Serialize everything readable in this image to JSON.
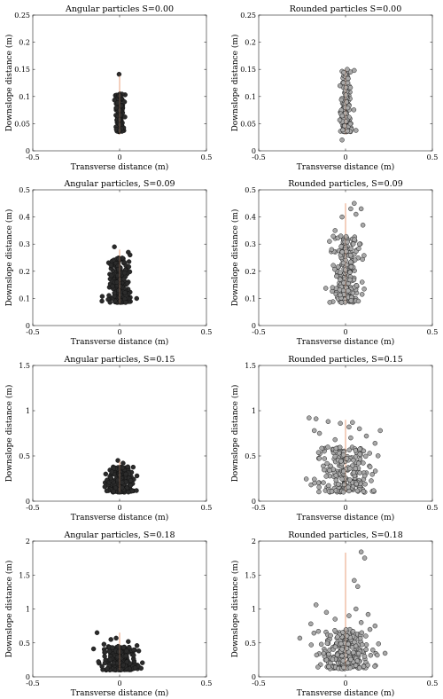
{
  "figure": {
    "xlabel": "Transverse distance (m)",
    "ylabel": "Downslope distance (m)",
    "colors": {
      "angular": "#2b2b2b",
      "rounded": "#a9a9a9",
      "edge": "#111111",
      "trajectory": "#e8a27e"
    }
  },
  "chart_data": [
    {
      "type": "scatter",
      "title": "Angular particles S=0.00",
      "series": "angular",
      "xlim": [
        -0.5,
        0.5
      ],
      "ylim": [
        0,
        0.25
      ],
      "xticks": [
        -0.5,
        0,
        0.5
      ],
      "xtick_labels": [
        "-0.5",
        "0",
        "0.5"
      ],
      "yticks": [
        0,
        0.05,
        0.1,
        0.15,
        0.2,
        0.25
      ],
      "ytick_labels": [
        "0",
        "0.05",
        "0.1",
        "0.15",
        "0.2",
        "0.25"
      ],
      "line": {
        "x": [
          0,
          0
        ],
        "y": [
          0.03,
          0.14
        ]
      },
      "cluster": {
        "n": 160,
        "x_center": 0,
        "x_spread": 0.012,
        "y_min": 0.035,
        "y_max": 0.105
      },
      "outliers": [
        [
          -0.003,
          0.141
        ]
      ]
    },
    {
      "type": "scatter",
      "title": "Rounded particles S=0.00",
      "series": "rounded",
      "xlim": [
        -0.5,
        0.5
      ],
      "ylim": [
        0,
        0.25
      ],
      "xticks": [
        -0.5,
        0,
        0.5
      ],
      "xtick_labels": [
        "-0.5",
        "0",
        "0.5"
      ],
      "yticks": [
        0,
        0.05,
        0.1,
        0.15,
        0.2,
        0.25
      ],
      "ytick_labels": [
        "0",
        "0.05",
        "0.1",
        "0.15",
        "0.2",
        "0.25"
      ],
      "line": {
        "x": [
          0,
          0
        ],
        "y": [
          0.03,
          0.15
        ]
      },
      "cluster": {
        "n": 150,
        "x_center": 0.003,
        "x_spread": 0.015,
        "y_min": 0.035,
        "y_max": 0.15
      },
      "outliers": [
        [
          -0.02,
          0.02
        ],
        [
          0.05,
          0.148
        ],
        [
          0.01,
          0.15
        ]
      ]
    },
    {
      "type": "scatter",
      "title": "Angular particles, S=0.09",
      "series": "angular",
      "xlim": [
        -0.5,
        0.5
      ],
      "ylim": [
        0,
        0.5
      ],
      "xticks": [
        -0.5,
        0,
        0.5
      ],
      "xtick_labels": [
        "-0.5",
        "0",
        "0.5"
      ],
      "yticks": [
        0,
        0.1,
        0.2,
        0.3,
        0.4,
        0.5
      ],
      "ytick_labels": [
        "0",
        "0.1",
        "0.2",
        "0.3",
        "0.4",
        "0.5"
      ],
      "line": {
        "x": [
          0,
          0
        ],
        "y": [
          0.08,
          0.28
        ]
      },
      "cluster": {
        "n": 200,
        "x_center": 0,
        "x_spread": 0.03,
        "y_min": 0.085,
        "y_max": 0.25
      },
      "outliers": [
        [
          -0.03,
          0.29
        ],
        [
          0.05,
          0.27
        ],
        [
          0.06,
          0.26
        ]
      ]
    },
    {
      "type": "scatter",
      "title": "Rounded particles, S=0.09",
      "series": "rounded",
      "xlim": [
        -0.5,
        0.5
      ],
      "ylim": [
        0,
        0.5
      ],
      "xticks": [
        -0.5,
        0,
        0.5
      ],
      "xtick_labels": [
        "-0.5",
        "0",
        "0.5"
      ],
      "yticks": [
        0,
        0.1,
        0.2,
        0.3,
        0.4,
        0.5
      ],
      "ytick_labels": [
        "0",
        "0.1",
        "0.2",
        "0.3",
        "0.4",
        "0.5"
      ],
      "line": {
        "x": [
          0,
          0
        ],
        "y": [
          0.08,
          0.45
        ]
      },
      "cluster": {
        "n": 220,
        "x_center": 0,
        "x_spread": 0.04,
        "y_min": 0.085,
        "y_max": 0.33
      },
      "outliers": [
        [
          0.05,
          0.45
        ],
        [
          0.03,
          0.43
        ],
        [
          0.09,
          0.43
        ],
        [
          0.06,
          0.41
        ],
        [
          -0.02,
          0.4
        ],
        [
          0.1,
          0.37
        ],
        [
          -0.06,
          0.35
        ],
        [
          0.08,
          0.3
        ],
        [
          -0.08,
          0.28
        ]
      ]
    },
    {
      "type": "scatter",
      "title": "Angular particles, S=0.15",
      "series": "angular",
      "xlim": [
        -0.5,
        0.5
      ],
      "ylim": [
        0,
        1.5
      ],
      "xticks": [
        -0.5,
        0,
        0.5
      ],
      "xtick_labels": [
        "-0.5",
        "0",
        "0.5"
      ],
      "yticks": [
        0,
        0.5,
        1,
        1.5
      ],
      "ytick_labels": [
        "0",
        "0.5",
        "1",
        "1.5"
      ],
      "line": {
        "x": [
          0,
          0
        ],
        "y": [
          0.1,
          0.45
        ]
      },
      "cluster": {
        "n": 200,
        "x_center": 0,
        "x_spread": 0.04,
        "y_min": 0.1,
        "y_max": 0.38
      },
      "outliers": [
        [
          -0.01,
          0.45
        ],
        [
          0.02,
          0.42
        ],
        [
          -0.08,
          0.3
        ],
        [
          0.1,
          0.28
        ]
      ]
    },
    {
      "type": "scatter",
      "title": "Rounded particles, S=0.15",
      "series": "rounded",
      "xlim": [
        -0.5,
        0.5
      ],
      "ylim": [
        0,
        1.5
      ],
      "xticks": [
        -0.5,
        0,
        0.5
      ],
      "xtick_labels": [
        "-0.5",
        "0",
        "0.5"
      ],
      "yticks": [
        0,
        0.5,
        1,
        1.5
      ],
      "ytick_labels": [
        "0",
        "0.5",
        "1",
        "1.5"
      ],
      "line": {
        "x": [
          0,
          0
        ],
        "y": [
          0.1,
          0.9
        ]
      },
      "cluster": {
        "n": 230,
        "x_center": 0,
        "x_spread": 0.08,
        "y_min": 0.1,
        "y_max": 0.6
      },
      "outliers": [
        [
          -0.21,
          0.92
        ],
        [
          -0.17,
          0.91
        ],
        [
          -0.1,
          0.88
        ],
        [
          -0.03,
          0.86
        ],
        [
          0.04,
          0.87
        ],
        [
          0.02,
          0.82
        ],
        [
          0.08,
          0.8
        ],
        [
          0.2,
          0.78
        ],
        [
          -0.18,
          0.78
        ],
        [
          -0.15,
          0.75
        ],
        [
          0.12,
          0.72
        ],
        [
          0.03,
          0.7
        ],
        [
          -0.06,
          0.68
        ],
        [
          0.17,
          0.64
        ]
      ]
    },
    {
      "type": "scatter",
      "title": "Angular particles, S=0.18",
      "series": "angular",
      "xlim": [
        -0.5,
        0.5
      ],
      "ylim": [
        0,
        2
      ],
      "xticks": [
        -0.5,
        0,
        0.5
      ],
      "xtick_labels": [
        "-0.5",
        "0",
        "0.5"
      ],
      "yticks": [
        0,
        0.5,
        1,
        1.5,
        2
      ],
      "ytick_labels": [
        "0",
        "0.5",
        "1",
        "1.5",
        "2"
      ],
      "line": {
        "x": [
          0,
          0
        ],
        "y": [
          0.1,
          0.65
        ]
      },
      "cluster": {
        "n": 210,
        "x_center": 0,
        "x_spread": 0.05,
        "y_min": 0.1,
        "y_max": 0.45
      },
      "outliers": [
        [
          -0.13,
          0.65
        ],
        [
          -0.05,
          0.55
        ],
        [
          -0.02,
          0.57
        ],
        [
          0.05,
          0.52
        ],
        [
          -0.09,
          0.48
        ],
        [
          0.1,
          0.46
        ]
      ]
    },
    {
      "type": "scatter",
      "title": "Rounded particles, S=0.18",
      "series": "rounded",
      "xlim": [
        -0.5,
        0.5
      ],
      "ylim": [
        0,
        2
      ],
      "xticks": [
        -0.5,
        0,
        0.5
      ],
      "xtick_labels": [
        "-0.5",
        "0",
        "0.5"
      ],
      "yticks": [
        0,
        0.5,
        1,
        1.5,
        2
      ],
      "ytick_labels": [
        "0",
        "0.5",
        "1",
        "1.5",
        "2"
      ],
      "line": {
        "x": [
          0,
          0
        ],
        "y": [
          0.1,
          1.83
        ]
      },
      "cluster": {
        "n": 240,
        "x_center": 0,
        "x_spread": 0.07,
        "y_min": 0.12,
        "y_max": 0.7
      },
      "outliers": [
        [
          0.09,
          1.84
        ],
        [
          0.11,
          1.75
        ],
        [
          0.05,
          1.42
        ],
        [
          0.07,
          1.33
        ],
        [
          -0.17,
          1.06
        ],
        [
          0.06,
          1.0
        ],
        [
          -0.11,
          0.95
        ],
        [
          0.13,
          0.92
        ],
        [
          0.02,
          0.9
        ],
        [
          -0.06,
          0.85
        ],
        [
          0.09,
          0.8
        ],
        [
          -0.2,
          0.78
        ],
        [
          0.17,
          0.75
        ]
      ]
    }
  ]
}
